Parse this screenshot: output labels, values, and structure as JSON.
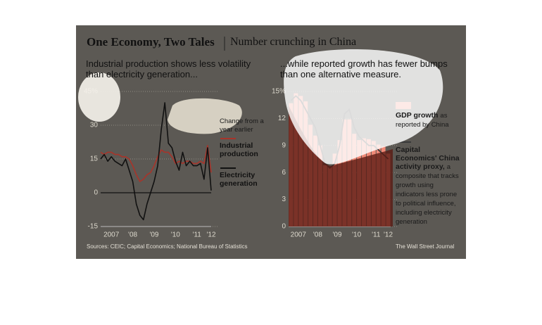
{
  "title": "One Economy, Two Tales",
  "subtitle": "Number crunching in China",
  "source": "Sources: CEIC; Capital Economics; National Bureau of Statistics",
  "credit": "The Wall Street Journal",
  "chart_data": [
    {
      "type": "line",
      "title": "Industrial production shows less volatility than electricity generation...",
      "annotation": "Change from a year earlier",
      "categories": [
        "2007",
        null,
        null,
        null,
        null,
        null,
        "'08",
        null,
        null,
        null,
        null,
        null,
        "'09",
        null,
        null,
        null,
        null,
        null,
        "'10",
        null,
        null,
        null,
        null,
        null,
        "'11",
        null,
        null,
        null,
        null,
        null,
        "'12",
        null
      ],
      "ylim": [
        -15,
        45
      ],
      "yticks": [
        {
          "value": 45,
          "label": "45%"
        },
        30,
        15,
        0,
        -15
      ],
      "grid": true,
      "series": [
        {
          "name": "Industrial production",
          "color": "#a8342a",
          "values": [
            18,
            17,
            18,
            18,
            17,
            17,
            16,
            16,
            15,
            12,
            8,
            5,
            6,
            8,
            9,
            12,
            16,
            19,
            18,
            18,
            16,
            13,
            14,
            13,
            14,
            14,
            13,
            13,
            14,
            13,
            21,
            9
          ]
        },
        {
          "name": "Electricity generation",
          "color": "#111111",
          "values": [
            15,
            17,
            14,
            16,
            14,
            13,
            12,
            15,
            10,
            5,
            -5,
            -10,
            -12,
            -5,
            0,
            5,
            12,
            28,
            40,
            22,
            20,
            14,
            10,
            18,
            12,
            14,
            12,
            12,
            13,
            6,
            20,
            1
          ]
        }
      ]
    },
    {
      "type": "bar",
      "title": "...while reported growth has fewer bumps than one alternative measure.",
      "categories": [
        "2007",
        null,
        null,
        null,
        "'08",
        null,
        null,
        null,
        "'09",
        null,
        null,
        null,
        "'10",
        null,
        null,
        null,
        "'11",
        null,
        null,
        null,
        "'12"
      ],
      "ylim": [
        0,
        15
      ],
      "yticks": [
        {
          "value": 15,
          "label": "15%"
        },
        12,
        9,
        6,
        3,
        0
      ],
      "grid": true,
      "series": [
        {
          "name": "GDP growth",
          "description": "as reported by China",
          "color": "#f08a78",
          "values": [
            13.7,
            14.8,
            14.5,
            13.9,
            11.3,
            10.1,
            9.0,
            6.8,
            6.6,
            8.1,
            9.6,
            11.9,
            11.9,
            10.3,
            9.6,
            9.8,
            9.7,
            9.5,
            9.1,
            8.9,
            8.1
          ]
        },
        {
          "name": "Capital Economics' China activity proxy,",
          "description": "a composite that tracks growth using indicators less prone to political influence, including electricity generation",
          "color": "#3a3a3a",
          "type": "line",
          "values": [
            14,
            14.5,
            14,
            13,
            12,
            11,
            9,
            7,
            6.5,
            7,
            9,
            12.5,
            13,
            11,
            10,
            9.5,
            9,
            9,
            8.5,
            8,
            7.5
          ]
        }
      ]
    }
  ]
}
